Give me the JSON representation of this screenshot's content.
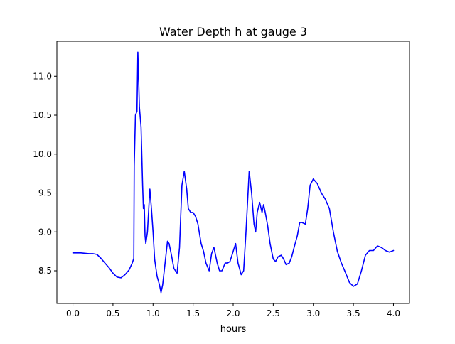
{
  "chart_data": {
    "type": "line",
    "title": "Water Depth h at gauge 3",
    "xlabel": "hours",
    "ylabel": "",
    "xlim": [
      -0.2,
      4.2
    ],
    "ylim": [
      8.08,
      11.45
    ],
    "xticks": [
      0.0,
      0.5,
      1.0,
      1.5,
      2.0,
      2.5,
      3.0,
      3.5,
      4.0
    ],
    "xtick_labels": [
      "0.0",
      "0.5",
      "1.0",
      "1.5",
      "2.0",
      "2.5",
      "3.0",
      "3.5",
      "4.0"
    ],
    "yticks": [
      8.5,
      9.0,
      9.5,
      10.0,
      10.5,
      11.0
    ],
    "ytick_labels": [
      "8.5",
      "9.0",
      "9.5",
      "10.0",
      "10.5",
      "11.0"
    ],
    "grid": false,
    "series": [
      {
        "color": "#0000ff",
        "x": [
          0.0,
          0.1,
          0.2,
          0.25,
          0.3,
          0.35,
          0.4,
          0.45,
          0.5,
          0.55,
          0.6,
          0.65,
          0.7,
          0.74,
          0.76,
          0.765,
          0.78,
          0.8,
          0.81,
          0.83,
          0.85,
          0.87,
          0.88,
          0.89,
          0.9,
          0.91,
          0.93,
          0.96,
          0.98,
          1.0,
          1.02,
          1.05,
          1.08,
          1.1,
          1.12,
          1.15,
          1.18,
          1.2,
          1.23,
          1.26,
          1.3,
          1.33,
          1.36,
          1.39,
          1.42,
          1.44,
          1.47,
          1.5,
          1.53,
          1.56,
          1.6,
          1.63,
          1.66,
          1.7,
          1.73,
          1.76,
          1.8,
          1.83,
          1.86,
          1.9,
          1.93,
          1.96,
          2.0,
          2.03,
          2.06,
          2.1,
          2.13,
          2.16,
          2.2,
          2.23,
          2.26,
          2.28,
          2.3,
          2.33,
          2.36,
          2.38,
          2.4,
          2.43,
          2.46,
          2.48,
          2.5,
          2.53,
          2.56,
          2.6,
          2.63,
          2.66,
          2.7,
          2.73,
          2.76,
          2.8,
          2.83,
          2.86,
          2.9,
          2.93,
          2.96,
          3.0,
          3.05,
          3.1,
          3.15,
          3.2,
          3.25,
          3.3,
          3.35,
          3.4,
          3.45,
          3.5,
          3.55,
          3.6,
          3.65,
          3.7,
          3.75,
          3.8,
          3.85,
          3.9,
          3.95,
          4.0
        ],
        "y": [
          8.73,
          8.73,
          8.72,
          8.72,
          8.71,
          8.66,
          8.6,
          8.54,
          8.47,
          8.42,
          8.41,
          8.45,
          8.51,
          8.6,
          8.66,
          9.85,
          10.5,
          10.55,
          11.31,
          10.6,
          10.35,
          9.6,
          9.3,
          9.35,
          8.95,
          8.85,
          9.0,
          9.55,
          9.3,
          9.0,
          8.65,
          8.43,
          8.32,
          8.22,
          8.32,
          8.6,
          8.88,
          8.85,
          8.7,
          8.53,
          8.47,
          8.8,
          9.6,
          9.78,
          9.55,
          9.3,
          9.25,
          9.25,
          9.2,
          9.1,
          8.85,
          8.75,
          8.6,
          8.5,
          8.72,
          8.8,
          8.6,
          8.5,
          8.5,
          8.6,
          8.6,
          8.62,
          8.75,
          8.85,
          8.6,
          8.45,
          8.5,
          9.0,
          9.78,
          9.5,
          9.1,
          9.0,
          9.25,
          9.38,
          9.25,
          9.35,
          9.25,
          9.08,
          8.85,
          8.75,
          8.65,
          8.62,
          8.68,
          8.7,
          8.65,
          8.58,
          8.6,
          8.68,
          8.8,
          8.95,
          9.12,
          9.12,
          9.1,
          9.3,
          9.6,
          9.68,
          9.62,
          9.5,
          9.42,
          9.3,
          9.0,
          8.75,
          8.6,
          8.48,
          8.35,
          8.3,
          8.33,
          8.5,
          8.7,
          8.76,
          8.76,
          8.82,
          8.8,
          8.76,
          8.74,
          8.76
        ]
      }
    ]
  }
}
